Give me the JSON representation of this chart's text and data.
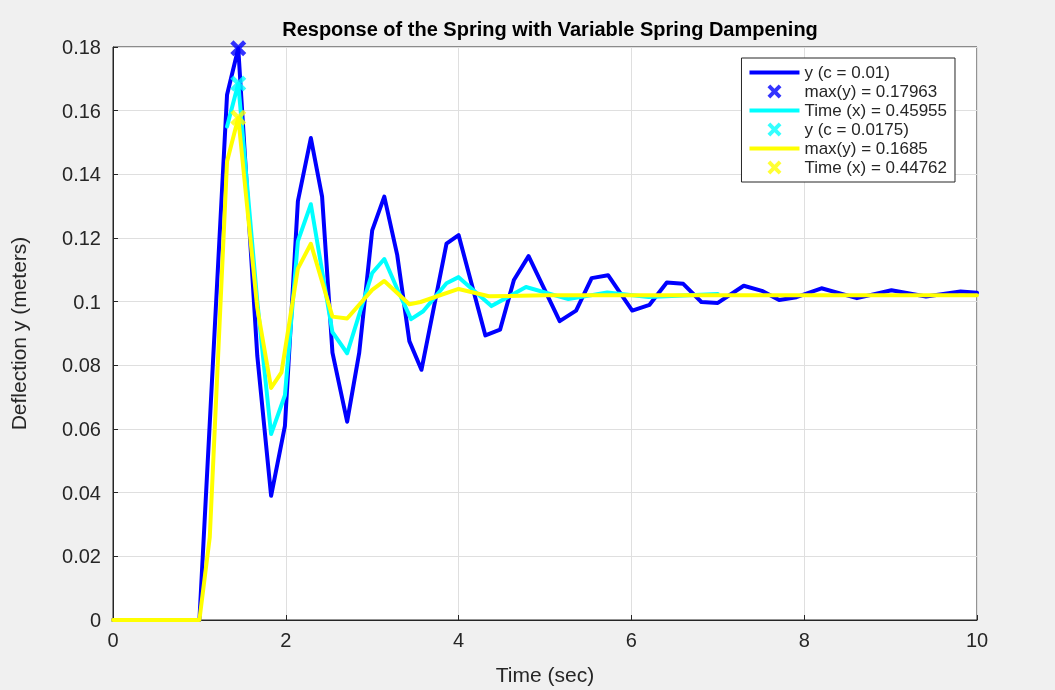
{
  "chart_data": {
    "type": "line",
    "title": "Response of the Spring with Variable Spring Dampening",
    "xlabel": "Time (sec)",
    "ylabel": "Deflection y (meters)",
    "xlim": [
      0,
      10
    ],
    "ylim": [
      0,
      0.18
    ],
    "xticks": [
      0,
      2,
      4,
      6,
      8,
      10
    ],
    "yticks": [
      0,
      0.02,
      0.04,
      0.06,
      0.08,
      0.1,
      0.12,
      0.14,
      0.16,
      0.18
    ],
    "grid": true,
    "legend": "top right",
    "series": [
      {
        "name": "y (c = 0.01)",
        "color": "#0000ff",
        "marker": "none",
        "x": [
          0,
          1.0,
          1.32,
          1.45,
          1.67,
          1.83,
          1.99,
          2.14,
          2.29,
          2.42,
          2.54,
          2.71,
          2.85,
          3.0,
          3.14,
          3.29,
          3.43,
          3.57,
          3.86,
          4.0,
          4.31,
          4.48,
          4.64,
          4.81,
          5.17,
          5.36,
          5.54,
          5.73,
          6.01,
          6.21,
          6.41,
          6.6,
          6.81,
          7.0,
          7.3,
          7.51,
          7.71,
          7.91,
          8.2,
          8.61,
          9.01,
          9.41,
          9.81,
          10
        ],
        "values": [
          0,
          0,
          0.165,
          0.1796,
          0.083,
          0.039,
          0.061,
          0.1316,
          0.1514,
          0.133,
          0.084,
          0.0623,
          0.084,
          0.1224,
          0.133,
          0.1146,
          0.0876,
          0.0786,
          0.1182,
          0.1209,
          0.0894,
          0.0912,
          0.1068,
          0.1143,
          0.0939,
          0.0972,
          0.1074,
          0.1083,
          0.0972,
          0.099,
          0.106,
          0.1056,
          0.0999,
          0.0996,
          0.105,
          0.1034,
          0.1005,
          0.1014,
          0.1042,
          0.1011,
          0.1036,
          0.1016,
          0.1032,
          0.1028
        ]
      },
      {
        "name": "max(y) = 0.17963",
        "color": "#0000ff",
        "type": "scatter",
        "marker": "cross",
        "x": [
          1.45
        ],
        "values": [
          0.1796
        ]
      },
      {
        "name": "Time (x) = 0.45955",
        "color": "#00ffff",
        "marker": "none",
        "x": [
          1.32,
          1.45,
          1.67,
          1.83,
          1.99,
          2.14,
          2.29,
          2.54,
          2.71,
          2.85,
          3.0,
          3.14,
          3.29,
          3.45,
          3.59,
          3.86,
          4.0,
          4.38,
          4.78,
          5.27,
          5.72,
          6.2,
          7.0
        ],
        "values": [
          0.155,
          0.1685,
          0.1,
          0.0584,
          0.0706,
          0.119,
          0.1306,
          0.0904,
          0.0838,
          0.096,
          0.109,
          0.1134,
          0.104,
          0.0945,
          0.097,
          0.1058,
          0.1077,
          0.0986,
          0.1046,
          0.1008,
          0.1029,
          0.1015,
          0.1024
        ]
      },
      {
        "name": "y (c = 0.0175)",
        "color": "#00ffff",
        "type": "scatter",
        "marker": "cross",
        "x": [
          1.45
        ],
        "values": [
          0.1685
        ]
      },
      {
        "name": "max(y) = 0.1685",
        "color": "#ffff00",
        "marker": "none",
        "x": [
          0,
          1.0,
          1.12,
          1.32,
          1.45,
          1.67,
          1.83,
          1.95,
          2.14,
          2.29,
          2.54,
          2.71,
          3.0,
          3.14,
          3.43,
          3.56,
          4.0,
          4.35,
          5.0,
          10
        ],
        "values": [
          0,
          0,
          0.026,
          0.144,
          0.1578,
          0.098,
          0.0729,
          0.0778,
          0.1104,
          0.1182,
          0.0953,
          0.0947,
          0.1037,
          0.1065,
          0.0992,
          0.0999,
          0.104,
          0.1017,
          0.102,
          0.102
        ]
      },
      {
        "name": "Time (x) = 0.44762",
        "color": "#ffff00",
        "type": "scatter",
        "marker": "cross",
        "x": [
          1.45
        ],
        "values": [
          0.1578
        ]
      }
    ]
  }
}
